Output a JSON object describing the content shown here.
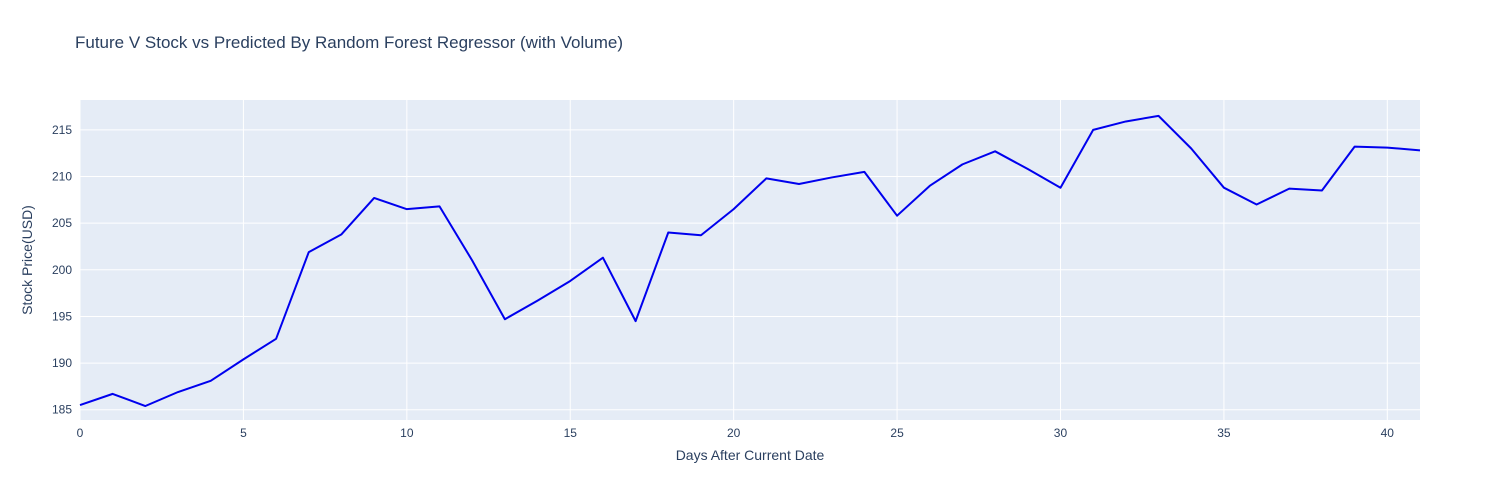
{
  "chart_data": {
    "type": "line",
    "title": "Future V Stock vs Predicted By Random Forest Regressor (with Volume)",
    "xlabel": "Days After Current Date",
    "ylabel": "Stock Price(USD)",
    "xlim": [
      0,
      41
    ],
    "ylim": [
      183.9,
      218.2
    ],
    "x_ticks": [
      0,
      5,
      10,
      15,
      20,
      25,
      30,
      35,
      40
    ],
    "y_ticks": [
      185,
      190,
      195,
      200,
      205,
      210,
      215
    ],
    "grid": true,
    "legend": "none",
    "series": [
      {
        "color": "#0000ee",
        "x": [
          0,
          1,
          2,
          3,
          4,
          5,
          6,
          7,
          8,
          9,
          10,
          11,
          12,
          13,
          14,
          15,
          16,
          17,
          18,
          19,
          20,
          21,
          22,
          23,
          24,
          25,
          26,
          27,
          28,
          29,
          30,
          31,
          32,
          33,
          34,
          35,
          36,
          37,
          38,
          39,
          40,
          41
        ],
        "y": [
          185.5,
          186.7,
          185.4,
          186.9,
          188.1,
          190.4,
          192.6,
          201.9,
          203.8,
          207.7,
          206.5,
          206.8,
          201.0,
          194.7,
          196.7,
          198.8,
          201.3,
          194.5,
          204.0,
          203.7,
          206.5,
          209.8,
          209.2,
          209.9,
          210.5,
          205.8,
          209.0,
          211.3,
          212.7,
          210.8,
          208.8,
          215.0,
          215.9,
          216.5,
          213.0,
          208.8,
          207.0,
          208.7,
          208.5,
          213.2,
          213.1,
          212.8
        ]
      }
    ]
  }
}
